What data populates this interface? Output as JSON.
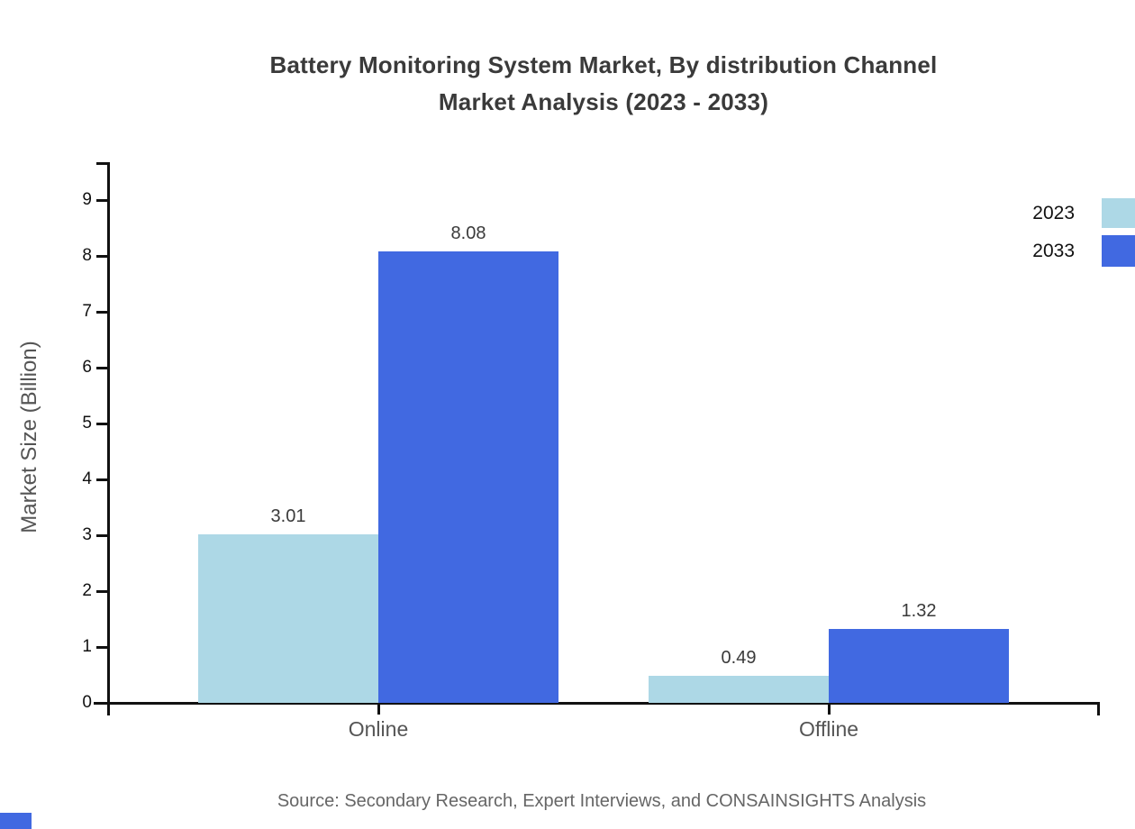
{
  "title": {
    "line1": "Battery Monitoring System Market, By distribution Channel",
    "line2": "Market Analysis (2023 - 2033)"
  },
  "source": "Source: Secondary Research, Expert Interviews, and CONSAINSIGHTS Analysis",
  "brand_mark_color": "#4169E1",
  "chart_data": {
    "type": "bar",
    "title": "Battery Monitoring System Market, By distribution Channel Market Analysis (2023 - 2033)",
    "categories": [
      "Online",
      "Offline"
    ],
    "series": [
      {
        "name": "2023",
        "color": "#ADD8E6",
        "values": [
          3.01,
          0.49
        ],
        "labels": [
          "3.01",
          "0.49"
        ]
      },
      {
        "name": "2033",
        "color": "#4169E1",
        "values": [
          8.08,
          1.32
        ],
        "labels": [
          "8.08",
          "1.32"
        ]
      }
    ],
    "xlabel": "",
    "ylabel": "Market Size (Billion)",
    "ylim": [
      0,
      9.7
    ],
    "yticks": [
      0,
      1,
      2,
      3,
      4,
      5,
      6,
      7,
      8,
      9
    ],
    "grid": false,
    "legend_position": "top-right",
    "axis_color": "#111111"
  }
}
